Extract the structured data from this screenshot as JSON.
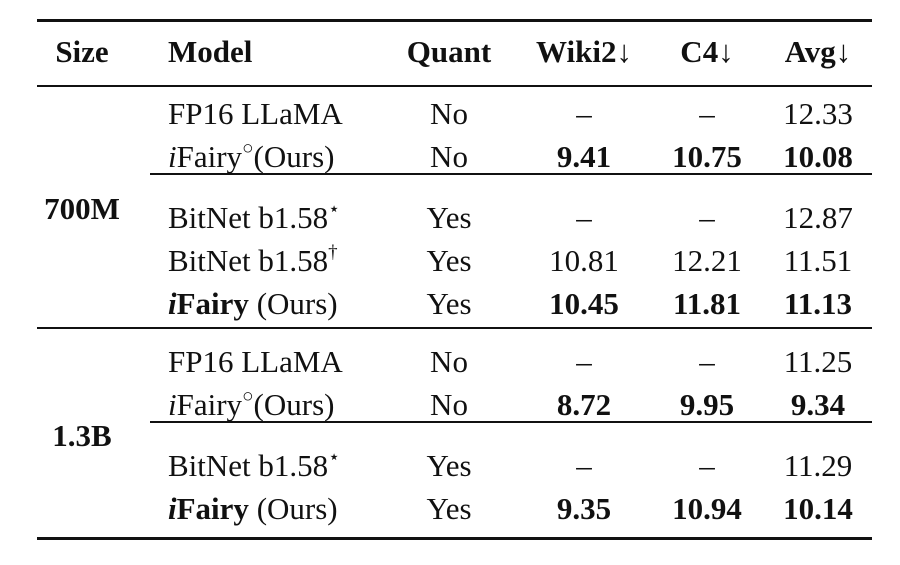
{
  "headers": [
    "Size",
    "Model",
    "Quant",
    "Wiki2↓",
    "C4↓",
    "Avg↓"
  ],
  "groups": [
    {
      "size": "700M",
      "blocks": [
        [
          {
            "model": [
              {
                "t": "FP16 LLaMA"
              }
            ],
            "quant": "No",
            "wiki2": "–",
            "c4": "–",
            "avg": "12.33",
            "bold": []
          },
          {
            "model": [
              {
                "t": "i",
                "it": true
              },
              {
                "t": "Fairy"
              },
              {
                "t": "○",
                "sup": true
              },
              {
                "t": "(Ours)"
              }
            ],
            "quant": "No",
            "wiki2": "9.41",
            "c4": "10.75",
            "avg": "10.08",
            "bold": [
              "wiki2",
              "c4",
              "avg"
            ]
          }
        ],
        [
          {
            "model": [
              {
                "t": "BitNet b1.58"
              },
              {
                "t": "⋆",
                "sup": true
              }
            ],
            "quant": "Yes",
            "wiki2": "–",
            "c4": "–",
            "avg": "12.87",
            "bold": []
          },
          {
            "model": [
              {
                "t": "BitNet b1.58"
              },
              {
                "t": "†",
                "sup": true
              }
            ],
            "quant": "Yes",
            "wiki2": "10.81",
            "c4": "12.21",
            "avg": "11.51",
            "bold": []
          },
          {
            "model": [
              {
                "t": "i",
                "it": true,
                "b": true
              },
              {
                "t": "Fairy",
                "b": true
              },
              {
                "t": " (Ours)"
              }
            ],
            "quant": "Yes",
            "wiki2": "10.45",
            "c4": "11.81",
            "avg": "11.13",
            "bold": [
              "wiki2",
              "c4",
              "avg"
            ]
          }
        ]
      ]
    },
    {
      "size": "1.3B",
      "blocks": [
        [
          {
            "model": [
              {
                "t": "FP16 LLaMA"
              }
            ],
            "quant": "No",
            "wiki2": "–",
            "c4": "–",
            "avg": "11.25",
            "bold": []
          },
          {
            "model": [
              {
                "t": "i",
                "it": true
              },
              {
                "t": "Fairy"
              },
              {
                "t": "○",
                "sup": true
              },
              {
                "t": "(Ours)"
              }
            ],
            "quant": "No",
            "wiki2": "8.72",
            "c4": "9.95",
            "avg": "9.34",
            "bold": [
              "wiki2",
              "c4",
              "avg"
            ]
          }
        ],
        [
          {
            "model": [
              {
                "t": "BitNet b1.58"
              },
              {
                "t": "⋆",
                "sup": true
              }
            ],
            "quant": "Yes",
            "wiki2": "–",
            "c4": "–",
            "avg": "11.29",
            "bold": []
          },
          {
            "model": [
              {
                "t": "i",
                "it": true,
                "b": true
              },
              {
                "t": "Fairy",
                "b": true
              },
              {
                "t": " (Ours)"
              }
            ],
            "quant": "Yes",
            "wiki2": "9.35",
            "c4": "10.94",
            "avg": "10.14",
            "bold": [
              "wiki2",
              "c4",
              "avg"
            ]
          }
        ]
      ]
    }
  ]
}
